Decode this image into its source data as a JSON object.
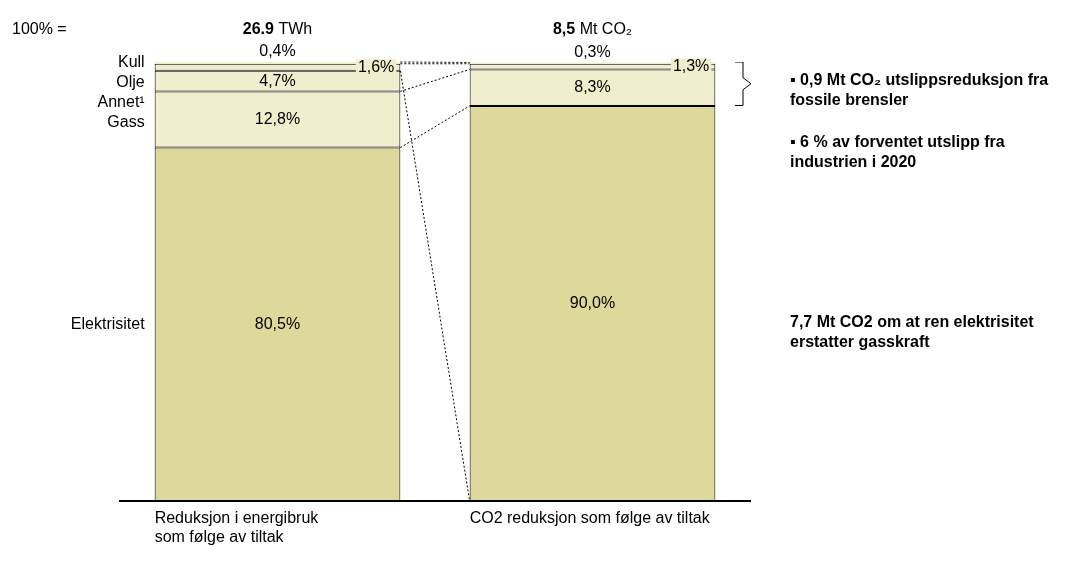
{
  "chart_data": {
    "type": "bar",
    "stacked": true,
    "categories": [
      "Reduksjon i energibruk\nsom følge av tiltak",
      "CO2 reduksjon som følge av tiltak"
    ],
    "series": [
      {
        "name": "Elektrisitet",
        "color": "#ddd99b",
        "values": [
          80.5,
          90.0
        ],
        "value_labels": [
          "80,5%",
          "90,0%"
        ]
      },
      {
        "name": "Gass",
        "color": "#efeecd",
        "values": [
          12.8,
          8.3
        ],
        "value_labels": [
          "12,8%",
          "8,3%"
        ]
      },
      {
        "name": "Annet¹",
        "color": "#efeecd",
        "values": [
          4.7,
          null
        ],
        "value_labels": [
          "4,7%",
          null
        ]
      },
      {
        "name": "Olje",
        "color": "#efeecd",
        "values": [
          1.6,
          1.3
        ],
        "value_labels": [
          "1,6%",
          "1,3%"
        ]
      },
      {
        "name": "Kull",
        "color": "#efeecd",
        "values": [
          0.4,
          0.3
        ],
        "value_labels": [
          "0,4%",
          "0,3%"
        ]
      }
    ],
    "ylim": [
      0,
      100
    ],
    "annotations": [
      "100% =",
      "26.9 TWh",
      "8,5 Mt CO₂",
      "▪ 0,9 Mt CO₂ utslippsreduksjon fra fossile brensler",
      "▪ 6 % av forventet utslipp fra industrien i 2020",
      "7,7 Mt CO2 om at ren elektrisitet erstatter gasskraft"
    ],
    "grid": false,
    "legend": false
  }
}
